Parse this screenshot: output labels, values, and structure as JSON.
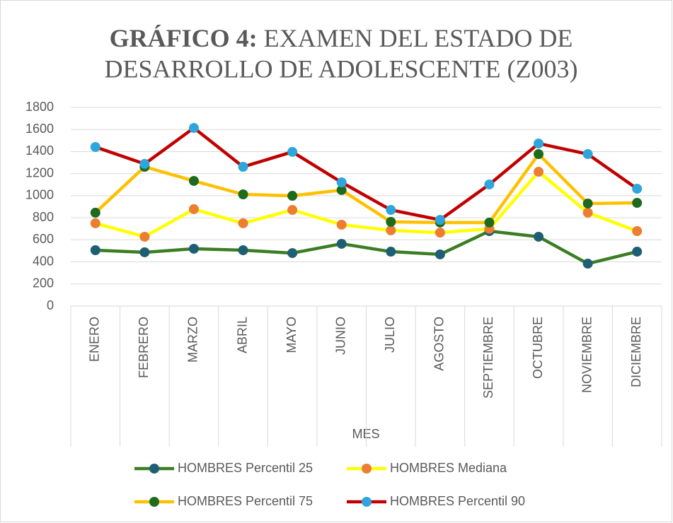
{
  "chart_data": {
    "type": "line",
    "title": [
      "GRÁFICO 4:",
      "EXAMEN DEL ESTADO DE",
      "DESARROLLO DE ADOLESCENTE (Z003)"
    ],
    "xlabel": "MES",
    "categories": [
      "ENERO",
      "FEBRERO",
      "MARZO",
      "ABRIL",
      "MAYO",
      "JUNIO",
      "JULIO",
      "AGOSTO",
      "SEPTIEMBRE",
      "OCTUBRE",
      "NOVIEMBRE",
      "DICIEMBRE"
    ],
    "series": [
      {
        "name": "HOMBRES Percentil 25",
        "color": "#3b7d23",
        "marker_color": "#1f5f73",
        "values": [
          506,
          487,
          519,
          506,
          480,
          564,
          493,
          468,
          679,
          628,
          384,
          493
        ]
      },
      {
        "name": "HOMBRES Mediana",
        "color": "#ffff00",
        "marker_color": "#ed7d31",
        "values": [
          750,
          628,
          878,
          750,
          871,
          737,
          686,
          665,
          700,
          1217,
          846,
          679
        ]
      },
      {
        "name": "HOMBRES Percentil 75",
        "color": "#ffc000",
        "marker_color": "#1e6b1e",
        "values": [
          846,
          1262,
          1134,
          1012,
          999,
          1051,
          763,
          757,
          757,
          1377,
          929,
          935
        ]
      },
      {
        "name": "HOMBRES Percentil 90",
        "color": "#c00000",
        "marker_color": "#2ea6dc",
        "values": [
          1441,
          1288,
          1614,
          1262,
          1397,
          1121,
          871,
          781,
          1102,
          1473,
          1377,
          1063
        ]
      }
    ],
    "ylim": [
      0,
      1800
    ],
    "yticks": [
      0,
      200,
      400,
      600,
      800,
      1000,
      1200,
      1400,
      1600,
      1800
    ],
    "grid": true
  }
}
